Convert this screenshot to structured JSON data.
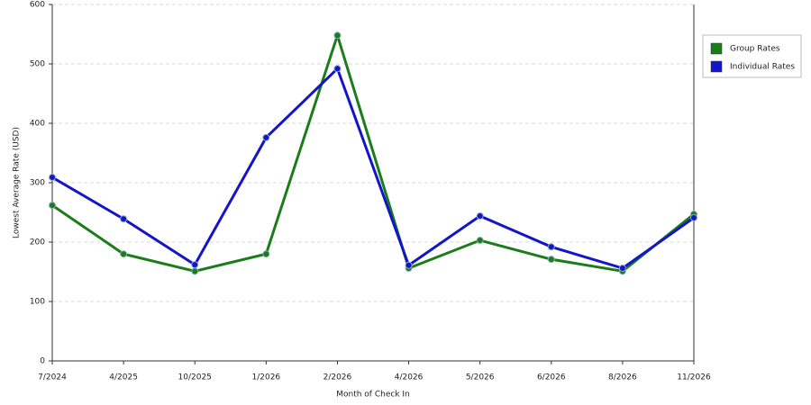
{
  "chart_data": {
    "type": "line",
    "x_label": "Month of Check In",
    "y_label": "Lowest Average Rate (USD)",
    "categories": [
      "7/2024",
      "4/2025",
      "10/2025",
      "1/2026",
      "2/2026",
      "4/2026",
      "5/2026",
      "6/2026",
      "8/2026",
      "11/2026"
    ],
    "series": [
      {
        "name": "Group Rates",
        "color": "#1a7d1a",
        "values": [
          262,
          180,
          151,
          180,
          548,
          156,
          203,
          171,
          151,
          247
        ]
      },
      {
        "name": "Individual Rates",
        "color": "#1414c8",
        "values": [
          309,
          239,
          162,
          376,
          492,
          161,
          244,
          192,
          156,
          241
        ]
      }
    ],
    "ylim": [
      0,
      600
    ],
    "yticks": [
      0,
      100,
      200,
      300,
      400,
      500,
      600
    ],
    "grid": true,
    "legend": "right"
  }
}
